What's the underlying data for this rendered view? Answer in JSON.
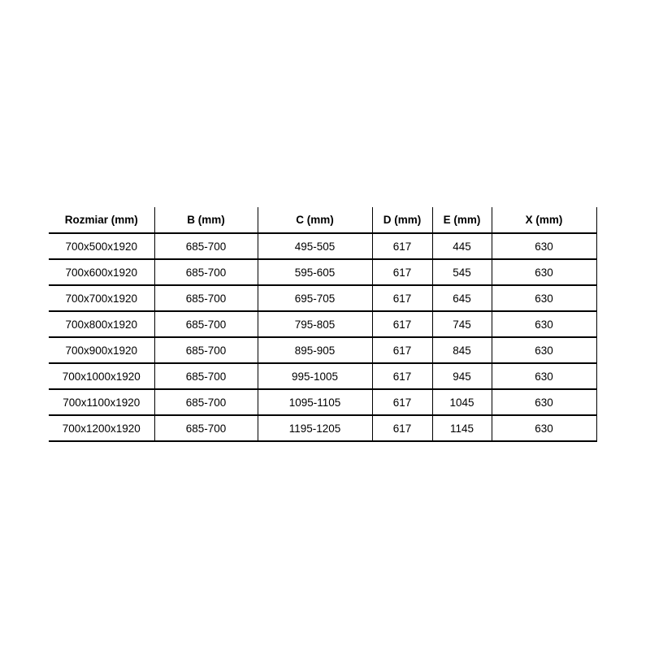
{
  "page": {
    "background_color": "#ffffff",
    "text_color": "#000000",
    "border_color": "#000000"
  },
  "chart_data": {
    "type": "table",
    "columns": [
      "Rozmiar (mm)",
      "B (mm)",
      "C (mm)",
      "D (mm)",
      "E (mm)",
      "X (mm)"
    ],
    "rows": [
      [
        "700x500x1920",
        "685-700",
        "495-505",
        "617",
        "445",
        "630"
      ],
      [
        "700x600x1920",
        "685-700",
        "595-605",
        "617",
        "545",
        "630"
      ],
      [
        "700x700x1920",
        "685-700",
        "695-705",
        "617",
        "645",
        "630"
      ],
      [
        "700x800x1920",
        "685-700",
        "795-805",
        "617",
        "745",
        "630"
      ],
      [
        "700x900x1920",
        "685-700",
        "895-905",
        "617",
        "845",
        "630"
      ],
      [
        "700x1000x1920",
        "685-700",
        "995-1005",
        "617",
        "945",
        "630"
      ],
      [
        "700x1100x1920",
        "685-700",
        "1095-1105",
        "617",
        "1045",
        "630"
      ],
      [
        "700x1200x1920",
        "685-700",
        "1195-1205",
        "617",
        "1145",
        "630"
      ]
    ],
    "layout": {
      "grid": true,
      "header_bold": true,
      "outer_top_border": false,
      "outer_left_border": false
    }
  }
}
